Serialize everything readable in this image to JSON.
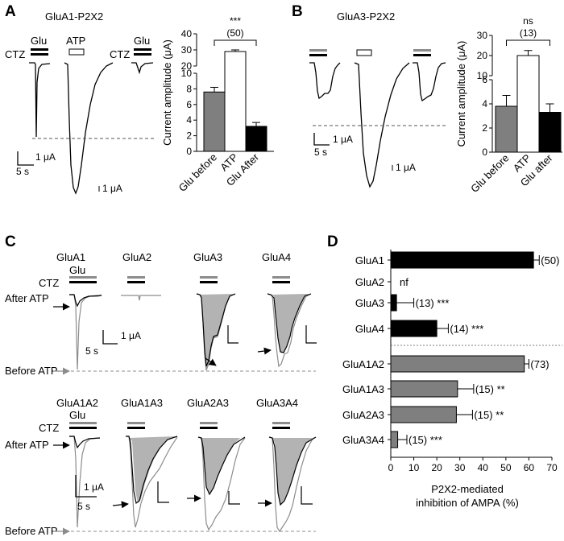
{
  "panels": {
    "A": {
      "letter": "A",
      "title": "GluA1-P2X2",
      "cond": {
        "ctz1": "CTZ",
        "glu1": "Glu",
        "atp": "ATP",
        "ctz2": "CTZ",
        "glu2": "Glu"
      },
      "scale": {
        "cur": "1 μA",
        "time": "5 s",
        "cur2": "1 μA"
      }
    },
    "B": {
      "letter": "B",
      "title": "GluA3-P2X2",
      "scale": {
        "cur": "1 μA",
        "time": "5 s",
        "cur2": "1 μA"
      }
    },
    "C": {
      "letter": "C",
      "top_labels": [
        "GluA1",
        "GluA2",
        "GluA3",
        "GluA4"
      ],
      "bottom_labels": [
        "GluA1A2",
        "GluA1A3",
        "GluA2A3",
        "GluA3A4"
      ],
      "ctz": "CTZ",
      "glu": "Glu",
      "after_atp": "After ATP",
      "before_atp": "Before ATP",
      "scale": {
        "cur": "1 μA",
        "time": "5 s"
      }
    },
    "D": {
      "letter": "D"
    }
  },
  "colors": {
    "grey_bar": "#7f7f7f",
    "black": "#000000",
    "grey_trace": "#8c8c8c",
    "fill": "#b3b3b3"
  },
  "chart_data": [
    {
      "type": "bar",
      "panel": "A",
      "categories": [
        "Glu before",
        "ATP",
        "Glu After"
      ],
      "values": [
        7.6,
        29.0,
        3.2
      ],
      "errors": [
        0.6,
        1.0,
        0.5
      ],
      "colors": [
        "#7f7f7f",
        "#ffffff",
        "#000000"
      ],
      "ylabel": "Current amplitude (μA)",
      "ylim_lower": [
        0,
        10
      ],
      "yticks_lower": [
        "0",
        "2",
        "4",
        "6",
        "8",
        "10"
      ],
      "ylim_upper": [
        20,
        40
      ],
      "yticks_upper": [
        "20",
        "30",
        "40"
      ],
      "significance": "***",
      "n_label": "(50)"
    },
    {
      "type": "bar",
      "panel": "B",
      "categories": [
        "Glu before",
        "ATP",
        "Glu after"
      ],
      "values": [
        3.8,
        20.0,
        3.3
      ],
      "errors": [
        0.9,
        2.5,
        0.7
      ],
      "colors": [
        "#7f7f7f",
        "#ffffff",
        "#000000"
      ],
      "ylabel": "Current amplitude (μA)",
      "ylim_lower": [
        0,
        6
      ],
      "yticks_lower": [
        "0",
        "2",
        "4",
        "6"
      ],
      "ylim_upper": [
        10,
        30
      ],
      "yticks_upper": [
        "10",
        "20",
        "30"
      ],
      "significance": "ns",
      "n_label": "(13)"
    },
    {
      "type": "bar",
      "panel": "D",
      "orientation": "horizontal",
      "categories": [
        "GluA1",
        "GluA2",
        "GluA3",
        "GluA4",
        "GluA1A2",
        "GluA1A3",
        "GluA2A3",
        "GluA3A4"
      ],
      "values": [
        62,
        null,
        2.5,
        20,
        58,
        29,
        28.5,
        3
      ],
      "errors": [
        2.5,
        null,
        7.5,
        5,
        2,
        7,
        7,
        4
      ],
      "colors": [
        "#000000",
        "#000000",
        "#000000",
        "#000000",
        "#7f7f7f",
        "#7f7f7f",
        "#7f7f7f",
        "#7f7f7f"
      ],
      "annotations": [
        "(50)",
        "nf",
        "(13) ***",
        "(14) ***",
        "(73)",
        "(15) **",
        "(15) **",
        "(15) ***"
      ],
      "xlim": [
        0,
        70
      ],
      "xticks": [
        "0",
        "10",
        "20",
        "30",
        "40",
        "50",
        "60",
        "70"
      ],
      "xlabel_line1": "P2X2-mediated",
      "xlabel_line2": "inhibition of AMPA (%)"
    }
  ]
}
